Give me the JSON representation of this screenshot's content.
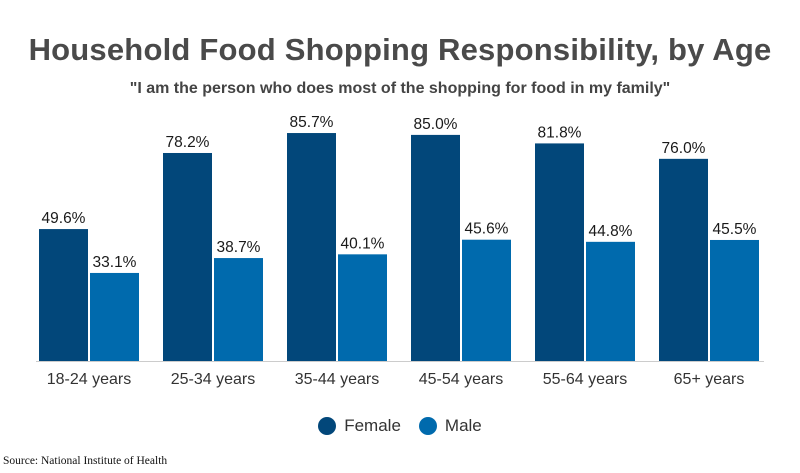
{
  "title": "Household Food Shopping Responsibility, by Age",
  "subtitle": "\"I am the person who does most of the shopping for food in my family\"",
  "source": "Source: National Institute of Health",
  "colors": {
    "female": "#02477a",
    "male": "#006aad",
    "baseline": "#cccccc"
  },
  "chart_data": {
    "type": "bar",
    "title": "Household Food Shopping Responsibility, by Age",
    "subtitle": "\"I am the person who does most of the shopping for food in my family\"",
    "categories": [
      "18-24 years",
      "25-34 years",
      "35-44 years",
      "45-54 years",
      "55-64 years",
      "65+ years"
    ],
    "series": [
      {
        "name": "Female",
        "values": [
          49.6,
          78.2,
          85.7,
          85.0,
          81.8,
          76.0
        ],
        "labels": [
          "49.6%",
          "78.2%",
          "85.7%",
          "85.0%",
          "81.8%",
          "76.0%"
        ]
      },
      {
        "name": "Male",
        "values": [
          33.1,
          38.7,
          40.1,
          45.6,
          44.8,
          45.5
        ],
        "labels": [
          "33.1%",
          "38.7%",
          "40.1%",
          "45.6%",
          "44.8%",
          "45.5%"
        ]
      }
    ],
    "xlabel": "",
    "ylabel": "",
    "ylim": [
      0,
      100
    ],
    "grid": false,
    "legend_position": "bottom-center"
  },
  "legend": [
    {
      "label": "Female",
      "color_key": "female"
    },
    {
      "label": "Male",
      "color_key": "male"
    }
  ]
}
